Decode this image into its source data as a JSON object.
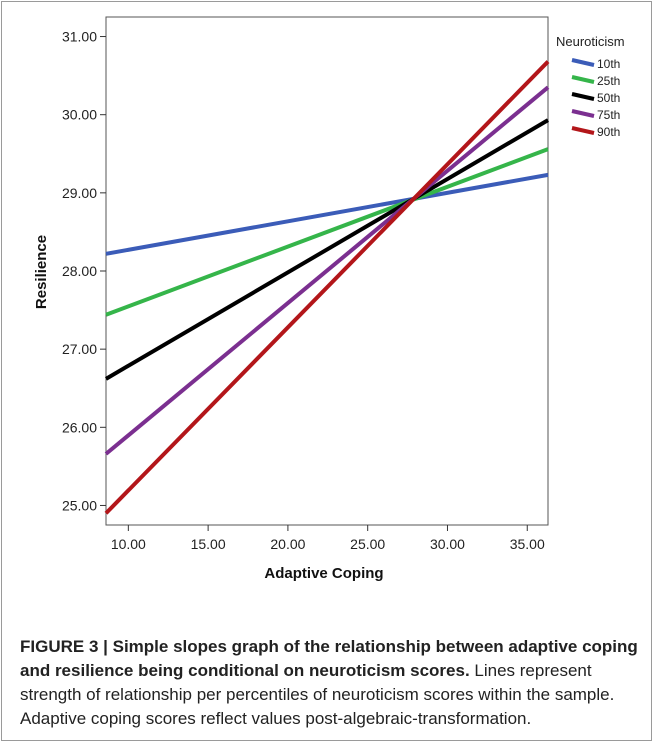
{
  "chart_data": {
    "type": "line",
    "title": "",
    "xlabel": "Adaptive Coping",
    "ylabel": "Resilience",
    "xlim": [
      8.6,
      36.3
    ],
    "ylim": [
      24.75,
      31.25
    ],
    "x_ticks": [
      "10.00",
      "15.00",
      "20.00",
      "25.00",
      "30.00",
      "35.00"
    ],
    "x_tick_values": [
      10,
      15,
      20,
      25,
      30,
      35
    ],
    "y_ticks": [
      "25.00",
      "26.00",
      "27.00",
      "28.00",
      "29.00",
      "30.00",
      "31.00"
    ],
    "y_tick_values": [
      25,
      26,
      27,
      28,
      29,
      30,
      31
    ],
    "legend_title": "Neuroticism",
    "legend_position": "top-right",
    "grid": false,
    "series": [
      {
        "name": "10th",
        "color": "#3b5cb8",
        "x": [
          8.6,
          36.3
        ],
        "y": [
          28.22,
          29.23
        ]
      },
      {
        "name": "25th",
        "color": "#35b54a",
        "x": [
          8.6,
          36.3
        ],
        "y": [
          27.44,
          29.56
        ]
      },
      {
        "name": "50th",
        "color": "#000000",
        "x": [
          8.6,
          36.3
        ],
        "y": [
          26.62,
          29.93
        ]
      },
      {
        "name": "75th",
        "color": "#7b2f90",
        "x": [
          8.6,
          36.3
        ],
        "y": [
          25.66,
          30.35
        ]
      },
      {
        "name": "90th",
        "color": "#b3161a",
        "x": [
          8.6,
          36.3
        ],
        "y": [
          24.9,
          30.68
        ]
      }
    ]
  },
  "caption": {
    "bold": "FIGURE 3 | Simple slopes graph of the relationship between adaptive coping and resilience being conditional on neuroticism scores.",
    "text": " Lines represent strength of relationship per percentiles of neuroticism scores within the sample. Adaptive coping scores reflect values post-algebraic-transformation."
  }
}
